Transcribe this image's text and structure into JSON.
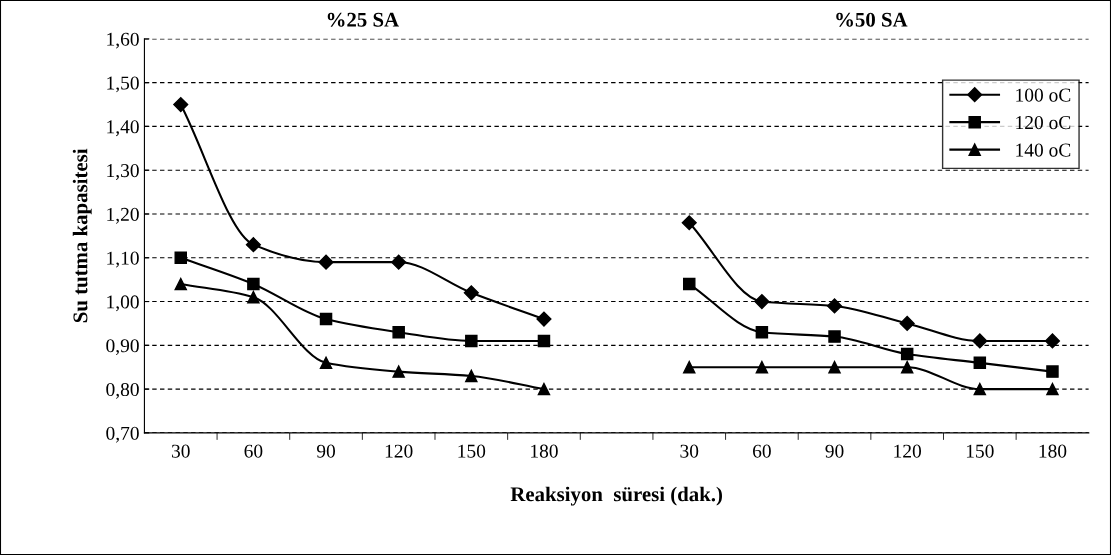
{
  "chart_data": {
    "type": "line",
    "xlabel": "Reaksiyon  süresi (dak.)",
    "ylabel": "Su tutma kapasitesi",
    "annotations": [
      "%25 SA",
      "%50 SA"
    ],
    "categories": [
      "30",
      "60",
      "90",
      "120",
      "150",
      "180",
      null,
      "30",
      "60",
      "90",
      "120",
      "150",
      "180"
    ],
    "series": [
      {
        "name": "100 oC",
        "color": "#000000",
        "marker": "diamond",
        "values": [
          1.45,
          1.13,
          1.09,
          1.09,
          1.02,
          0.96,
          null,
          1.18,
          1.0,
          0.99,
          0.95,
          0.91,
          0.91
        ]
      },
      {
        "name": "120 oC",
        "color": "#000000",
        "marker": "square",
        "values": [
          1.1,
          1.04,
          0.96,
          0.93,
          0.91,
          0.91,
          null,
          1.04,
          0.93,
          0.92,
          0.88,
          0.86,
          0.84
        ]
      },
      {
        "name": "140 oC",
        "color": "#000000",
        "marker": "triangle",
        "values": [
          1.04,
          1.01,
          0.86,
          0.84,
          0.83,
          0.8,
          null,
          0.85,
          0.85,
          0.85,
          0.85,
          0.8,
          0.8
        ]
      }
    ],
    "ylim": [
      0.7,
      1.6
    ],
    "yticks": [
      {
        "value": 0.7,
        "label": "0,70"
      },
      {
        "value": 0.8,
        "label": "0,80"
      },
      {
        "value": 0.9,
        "label": "0,90"
      },
      {
        "value": 1.0,
        "label": "1,00"
      },
      {
        "value": 1.1,
        "label": "1,10"
      },
      {
        "value": 1.2,
        "label": "1,20"
      },
      {
        "value": 1.3,
        "label": "1,30"
      },
      {
        "value": 1.4,
        "label": "1,40"
      },
      {
        "value": 1.5,
        "label": "1,50"
      },
      {
        "value": 1.6,
        "label": "1,60"
      }
    ],
    "grid": "y",
    "legend": "top right",
    "line_style": "solid"
  }
}
